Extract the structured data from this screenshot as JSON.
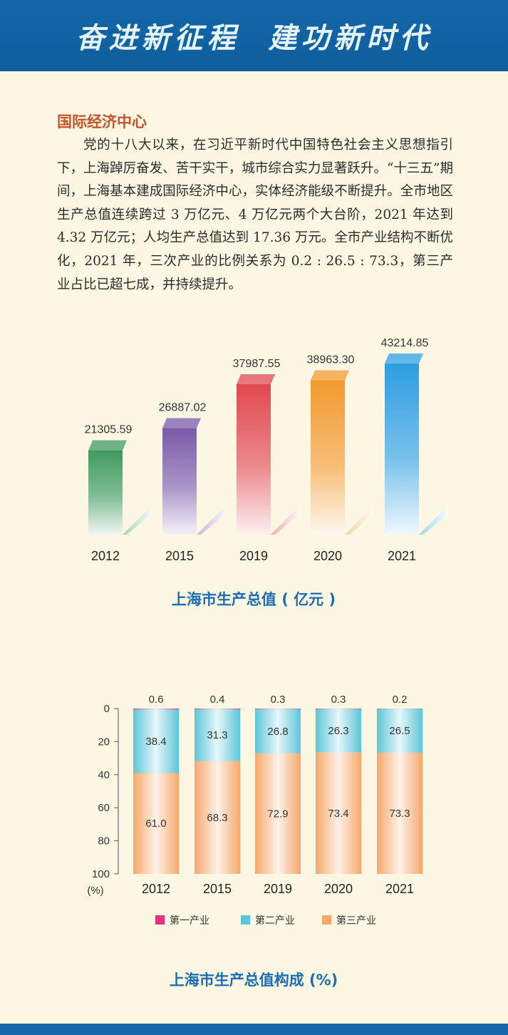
{
  "banner": {
    "title": "奋进新征程  建功新时代"
  },
  "section": {
    "heading": "国际经济中心",
    "body": "党的十八大以来，在习近平新时代中国特色社会主义思想指引下，上海踔厉奋发、苦干实干，城市综合实力显著跃升。“十三五”期间，上海基本建成国际经济中心，实体经济能级不断提升。全市地区生产总值连续跨过 3 万亿元、4 万亿元两个大台阶，2021 年达到 4.32 万亿元；人均生产总值达到 17.36 万元。全市产业结构不断优化，2021 年，三次产业的比例关系为 0.2 : 26.5 : 73.3，第三产业占比已超七成，并持续提升。"
  },
  "chart_data": [
    {
      "type": "bar",
      "title": "上海市生产总值 ( 亿元 )",
      "categories": [
        "2012",
        "2015",
        "2019",
        "2020",
        "2021"
      ],
      "values": [
        21305.59,
        26887.02,
        37987.55,
        38963.3,
        43214.85
      ],
      "value_labels": [
        "21305.59",
        "26887.02",
        "37987.55",
        "38963.30",
        "43214.85"
      ],
      "colors": [
        "#3f9a5e",
        "#7a5aa8",
        "#e0494f",
        "#f29a2e",
        "#2d9ee0"
      ],
      "ylim": [
        0,
        45000
      ],
      "grid": false
    },
    {
      "type": "bar",
      "stacked": true,
      "title": "上海市生产总值构成 (%)",
      "categories": [
        "2012",
        "2015",
        "2019",
        "2020",
        "2021"
      ],
      "series": [
        {
          "name": "第一产业",
          "values": [
            0.6,
            0.4,
            0.3,
            0.3,
            0.2
          ],
          "labels": [
            "0.6",
            "0.4",
            "0.3",
            "0.3",
            "0.2"
          ],
          "color": "#e0357a"
        },
        {
          "name": "第二产业",
          "values": [
            38.4,
            31.3,
            26.8,
            26.3,
            26.5
          ],
          "labels": [
            "38.4",
            "31.3",
            "26.8",
            "26.3",
            "26.5"
          ],
          "color": "#5cc6d8"
        },
        {
          "name": "第三产业",
          "values": [
            61.0,
            68.3,
            72.9,
            73.4,
            73.3
          ],
          "labels": [
            "61.0",
            "68.3",
            "72.9",
            "73.4",
            "73.3"
          ],
          "color": "#f5a86a"
        }
      ],
      "yticks": [
        "0",
        "20",
        "40",
        "60",
        "80",
        "100"
      ],
      "yunit": "(%)",
      "ylim": [
        0,
        100
      ],
      "y_inverted": true,
      "legend_position": "bottom"
    }
  ]
}
